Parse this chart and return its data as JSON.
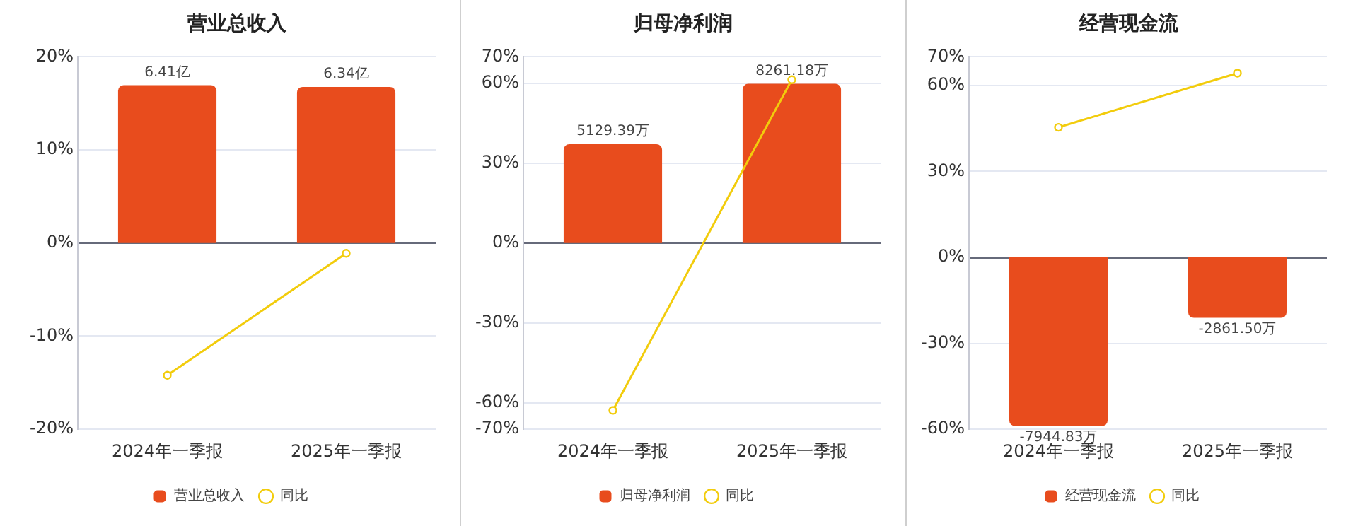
{
  "chart_data": [
    {
      "type": "bar",
      "title": "营业总收入",
      "categories": [
        "2024年一季报",
        "2025年一季报"
      ],
      "series": [
        {
          "name": "营业总收入",
          "axis": "y2",
          "color": "#e84c1d",
          "values": [
            6.41,
            6.34
          ],
          "value_labels": [
            "6.41亿",
            "6.34亿"
          ]
        },
        {
          "name": "同比",
          "type": "line",
          "color": "#f2cc0c",
          "values": [
            -14.2,
            -1.1
          ]
        }
      ],
      "ylim": [
        -20,
        20
      ],
      "yticks": [
        {
          "value": -20,
          "label": "-20%"
        },
        {
          "value": -10,
          "label": "-10%"
        },
        {
          "value": 0,
          "label": "0%"
        },
        {
          "value": 10,
          "label": "10%"
        },
        {
          "value": 20,
          "label": "20%"
        }
      ],
      "y2lim": [
        -7.56,
        7.56
      ],
      "grid": "y",
      "legend": "bottom",
      "marker": "circle"
    },
    {
      "type": "bar",
      "title": "归母净利润",
      "categories": [
        "2024年一季报",
        "2025年一季报"
      ],
      "series": [
        {
          "name": "归母净利润",
          "axis": "y2",
          "color": "#e84c1d",
          "values": [
            5129.39,
            8261.18
          ],
          "value_labels": [
            "5129.39万",
            "8261.18万"
          ]
        },
        {
          "name": "同比",
          "type": "line",
          "color": "#f2cc0c",
          "values": [
            -62.9,
            61.4
          ]
        }
      ],
      "ylim": [
        -70,
        70
      ],
      "yticks": [
        {
          "value": -70,
          "label": "-70%"
        },
        {
          "value": -60,
          "label": "-60%"
        },
        {
          "value": -30,
          "label": "-30%"
        },
        {
          "value": 0,
          "label": "0%"
        },
        {
          "value": 30,
          "label": "30%"
        },
        {
          "value": 60,
          "label": "60%"
        },
        {
          "value": 70,
          "label": "70%"
        }
      ],
      "y2lim": [
        -9660,
        9660
      ],
      "grid": "y",
      "legend": "bottom",
      "marker": "circle"
    },
    {
      "type": "bar",
      "title": "经营现金流",
      "categories": [
        "2024年一季报",
        "2025年一季报"
      ],
      "series": [
        {
          "name": "经营现金流",
          "axis": "y2",
          "color": "#e84c1d",
          "values": [
            -7944.83,
            -2861.5
          ],
          "value_labels": [
            "-7944.83万",
            "-2861.50万"
          ]
        },
        {
          "name": "同比",
          "type": "line",
          "color": "#f2cc0c",
          "values": [
            45.4,
            64.3
          ]
        }
      ],
      "ylim": [
        -60,
        70
      ],
      "yticks": [
        {
          "value": -60,
          "label": "-60%"
        },
        {
          "value": -30,
          "label": "-30%"
        },
        {
          "value": 0,
          "label": "0%"
        },
        {
          "value": 30,
          "label": "30%"
        },
        {
          "value": 60,
          "label": "60%"
        },
        {
          "value": 70,
          "label": "70%"
        }
      ],
      "y2lim": [
        -8100,
        9400
      ],
      "grid": "y",
      "legend": "bottom",
      "marker": "circle"
    }
  ]
}
